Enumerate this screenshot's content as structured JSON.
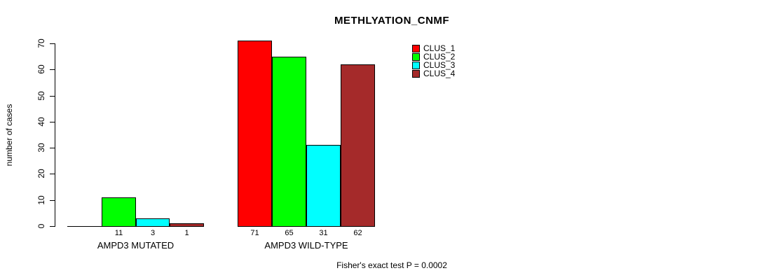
{
  "chart_data": {
    "type": "bar",
    "title": "METHLYATION_CNMF",
    "ylabel": "number of cases",
    "xlabel": "",
    "footnote": "Fisher's exact test P = 0.0002",
    "groups": [
      "AMPD3 MUTATED",
      "AMPD3 WILD-TYPE"
    ],
    "series": [
      {
        "name": "CLUS_1",
        "color": "#FF0000",
        "values": [
          0,
          71
        ]
      },
      {
        "name": "CLUS_2",
        "color": "#00FF00",
        "values": [
          11,
          65
        ]
      },
      {
        "name": "CLUS_3",
        "color": "#00FFFF",
        "values": [
          3,
          31
        ]
      },
      {
        "name": "CLUS_4",
        "color": "#A52A2A",
        "values": [
          1,
          62
        ]
      }
    ],
    "bar_labels": [
      [
        "",
        "11",
        "3",
        "1"
      ],
      [
        "71",
        "65",
        "31",
        "62"
      ]
    ],
    "yticks": [
      0,
      10,
      20,
      30,
      40,
      50,
      60,
      70
    ],
    "ylim": [
      0,
      70
    ],
    "grid": false,
    "legend_position": "top-right",
    "bar_border_color": "#000000",
    "text_color": "#000000"
  }
}
